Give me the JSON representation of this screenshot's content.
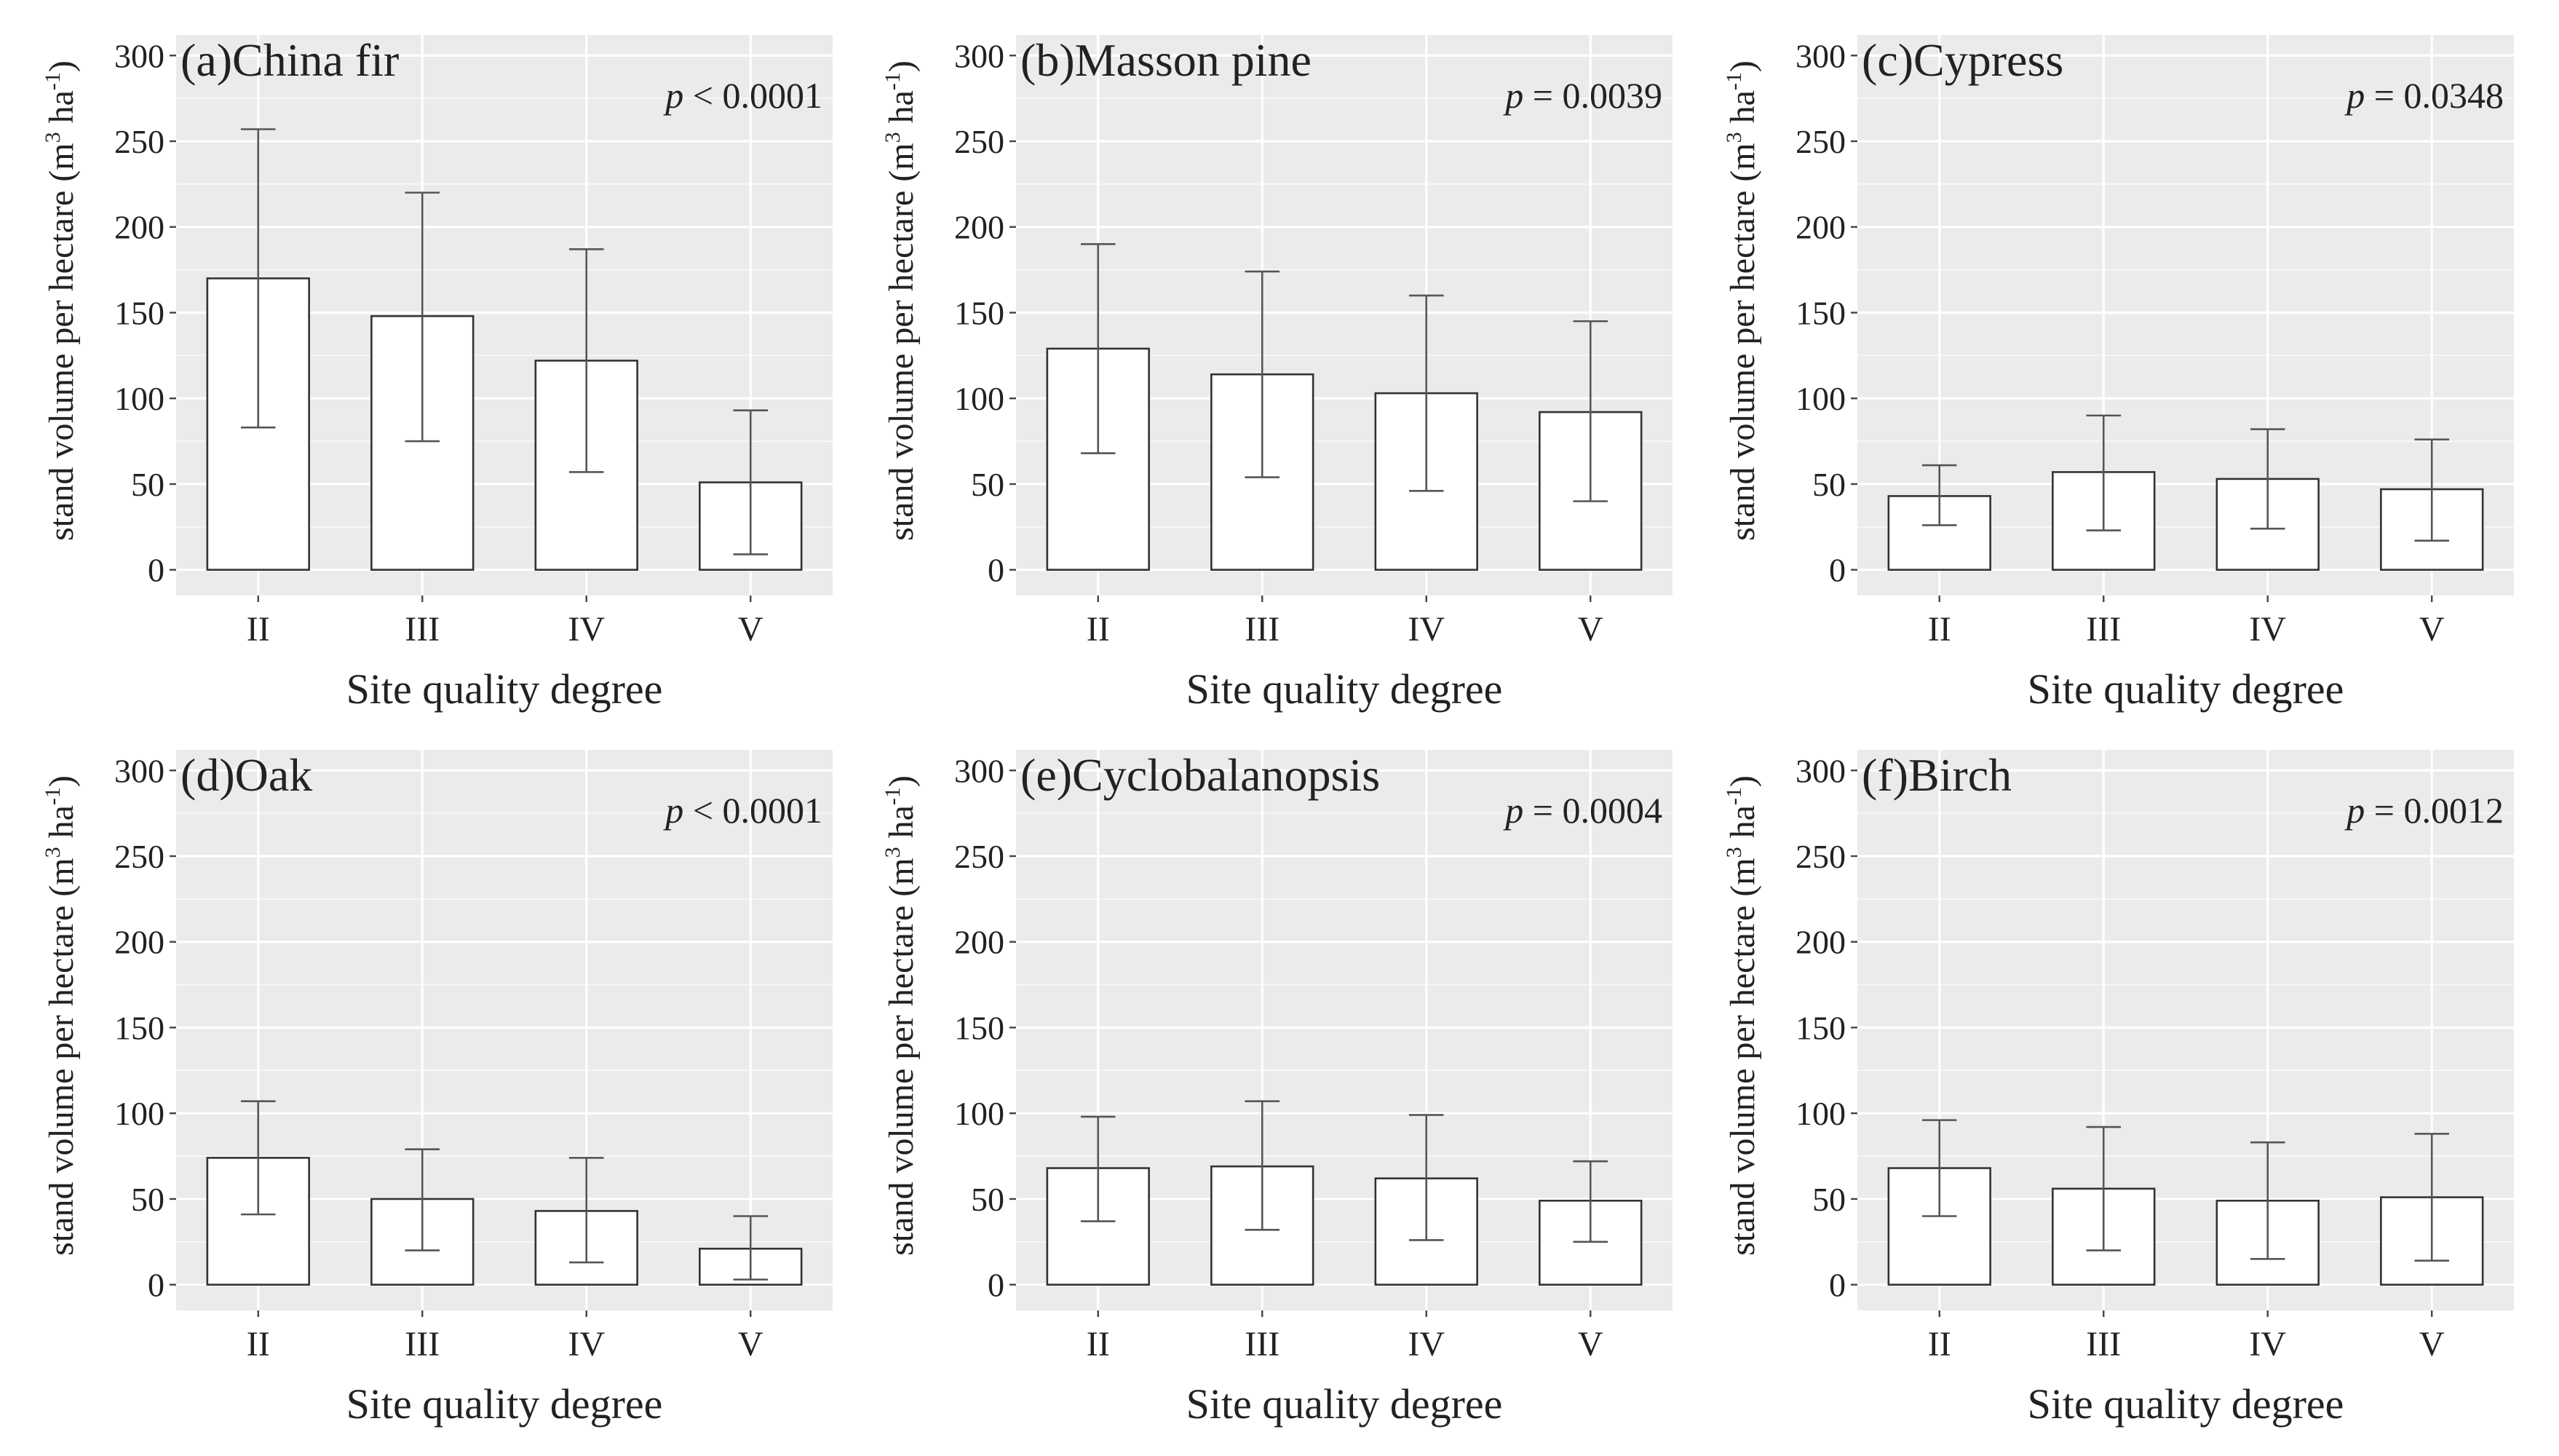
{
  "figure": {
    "colors": {
      "panel_bg": "#ebebeb",
      "grid": "#ffffff",
      "bar_fill": "#ffffff",
      "bar_stroke": "#333333",
      "error_bar": "#555555",
      "text": "#222222"
    }
  },
  "chart_data": [
    {
      "type": "bar",
      "panel": "a",
      "title": "(a)China fir",
      "p_prefix": "p",
      "p_rest": " < 0.0001",
      "categories": [
        "II",
        "III",
        "IV",
        "V"
      ],
      "values": [
        170,
        148,
        122,
        51
      ],
      "error_low": [
        83,
        75,
        57,
        9
      ],
      "error_high": [
        257,
        220,
        187,
        93
      ],
      "xlabel": "Site quality degree",
      "ylabel_main": "stand volume per hectare (m",
      "ylabel_sup1": "3",
      "ylabel_mid": " ha",
      "ylabel_sup2": "-1",
      "ylabel_end": ")",
      "ylim": [
        -15,
        312
      ],
      "yticks": [
        0,
        50,
        100,
        150,
        200,
        250,
        300
      ]
    },
    {
      "type": "bar",
      "panel": "b",
      "title": "(b)Masson pine",
      "p_prefix": "p",
      "p_rest": " = 0.0039",
      "categories": [
        "II",
        "III",
        "IV",
        "V"
      ],
      "values": [
        129,
        114,
        103,
        92
      ],
      "error_low": [
        68,
        54,
        46,
        40
      ],
      "error_high": [
        190,
        174,
        160,
        145
      ],
      "xlabel": "Site quality degree",
      "ylabel_main": "stand volume per hectare (m",
      "ylabel_sup1": "3",
      "ylabel_mid": " ha",
      "ylabel_sup2": "-1",
      "ylabel_end": ")",
      "ylim": [
        -15,
        312
      ],
      "yticks": [
        0,
        50,
        100,
        150,
        200,
        250,
        300
      ]
    },
    {
      "type": "bar",
      "panel": "c",
      "title": "(c)Cypress",
      "p_prefix": "p",
      "p_rest": " = 0.0348",
      "categories": [
        "II",
        "III",
        "IV",
        "V"
      ],
      "values": [
        43,
        57,
        53,
        47
      ],
      "error_low": [
        26,
        23,
        24,
        17
      ],
      "error_high": [
        61,
        90,
        82,
        76
      ],
      "xlabel": "Site quality degree",
      "ylabel_main": "stand volume per hectare (m",
      "ylabel_sup1": "3",
      "ylabel_mid": " ha",
      "ylabel_sup2": "-1",
      "ylabel_end": ")",
      "ylim": [
        -15,
        312
      ],
      "yticks": [
        0,
        50,
        100,
        150,
        200,
        250,
        300
      ]
    },
    {
      "type": "bar",
      "panel": "d",
      "title": "(d)Oak",
      "p_prefix": "p",
      "p_rest": " < 0.0001",
      "categories": [
        "II",
        "III",
        "IV",
        "V"
      ],
      "values": [
        74,
        50,
        43,
        21
      ],
      "error_low": [
        41,
        20,
        13,
        3
      ],
      "error_high": [
        107,
        79,
        74,
        40
      ],
      "xlabel": "Site quality degree",
      "ylabel_main": "stand volume per hectare (m",
      "ylabel_sup1": "3",
      "ylabel_mid": " ha",
      "ylabel_sup2": "-1",
      "ylabel_end": ")",
      "ylim": [
        -15,
        312
      ],
      "yticks": [
        0,
        50,
        100,
        150,
        200,
        250,
        300
      ]
    },
    {
      "type": "bar",
      "panel": "e",
      "title": "(e)Cyclobalanopsis",
      "p_prefix": "p",
      "p_rest": " = 0.0004",
      "categories": [
        "II",
        "III",
        "IV",
        "V"
      ],
      "values": [
        68,
        69,
        62,
        49
      ],
      "error_low": [
        37,
        32,
        26,
        25
      ],
      "error_high": [
        98,
        107,
        99,
        72
      ],
      "xlabel": "Site quality degree",
      "ylabel_main": "stand volume per hectare (m",
      "ylabel_sup1": "3",
      "ylabel_mid": " ha",
      "ylabel_sup2": "-1",
      "ylabel_end": ")",
      "ylim": [
        -15,
        312
      ],
      "yticks": [
        0,
        50,
        100,
        150,
        200,
        250,
        300
      ]
    },
    {
      "type": "bar",
      "panel": "f",
      "title": "(f)Birch",
      "p_prefix": "p",
      "p_rest": " = 0.0012",
      "categories": [
        "II",
        "III",
        "IV",
        "V"
      ],
      "values": [
        68,
        56,
        49,
        51
      ],
      "error_low": [
        40,
        20,
        15,
        14
      ],
      "error_high": [
        96,
        92,
        83,
        88
      ],
      "xlabel": "Site quality degree",
      "ylabel_main": "stand volume per hectare (m",
      "ylabel_sup1": "3",
      "ylabel_mid": " ha",
      "ylabel_sup2": "-1",
      "ylabel_end": ")",
      "ylim": [
        -15,
        312
      ],
      "yticks": [
        0,
        50,
        100,
        150,
        200,
        250,
        300
      ]
    }
  ]
}
